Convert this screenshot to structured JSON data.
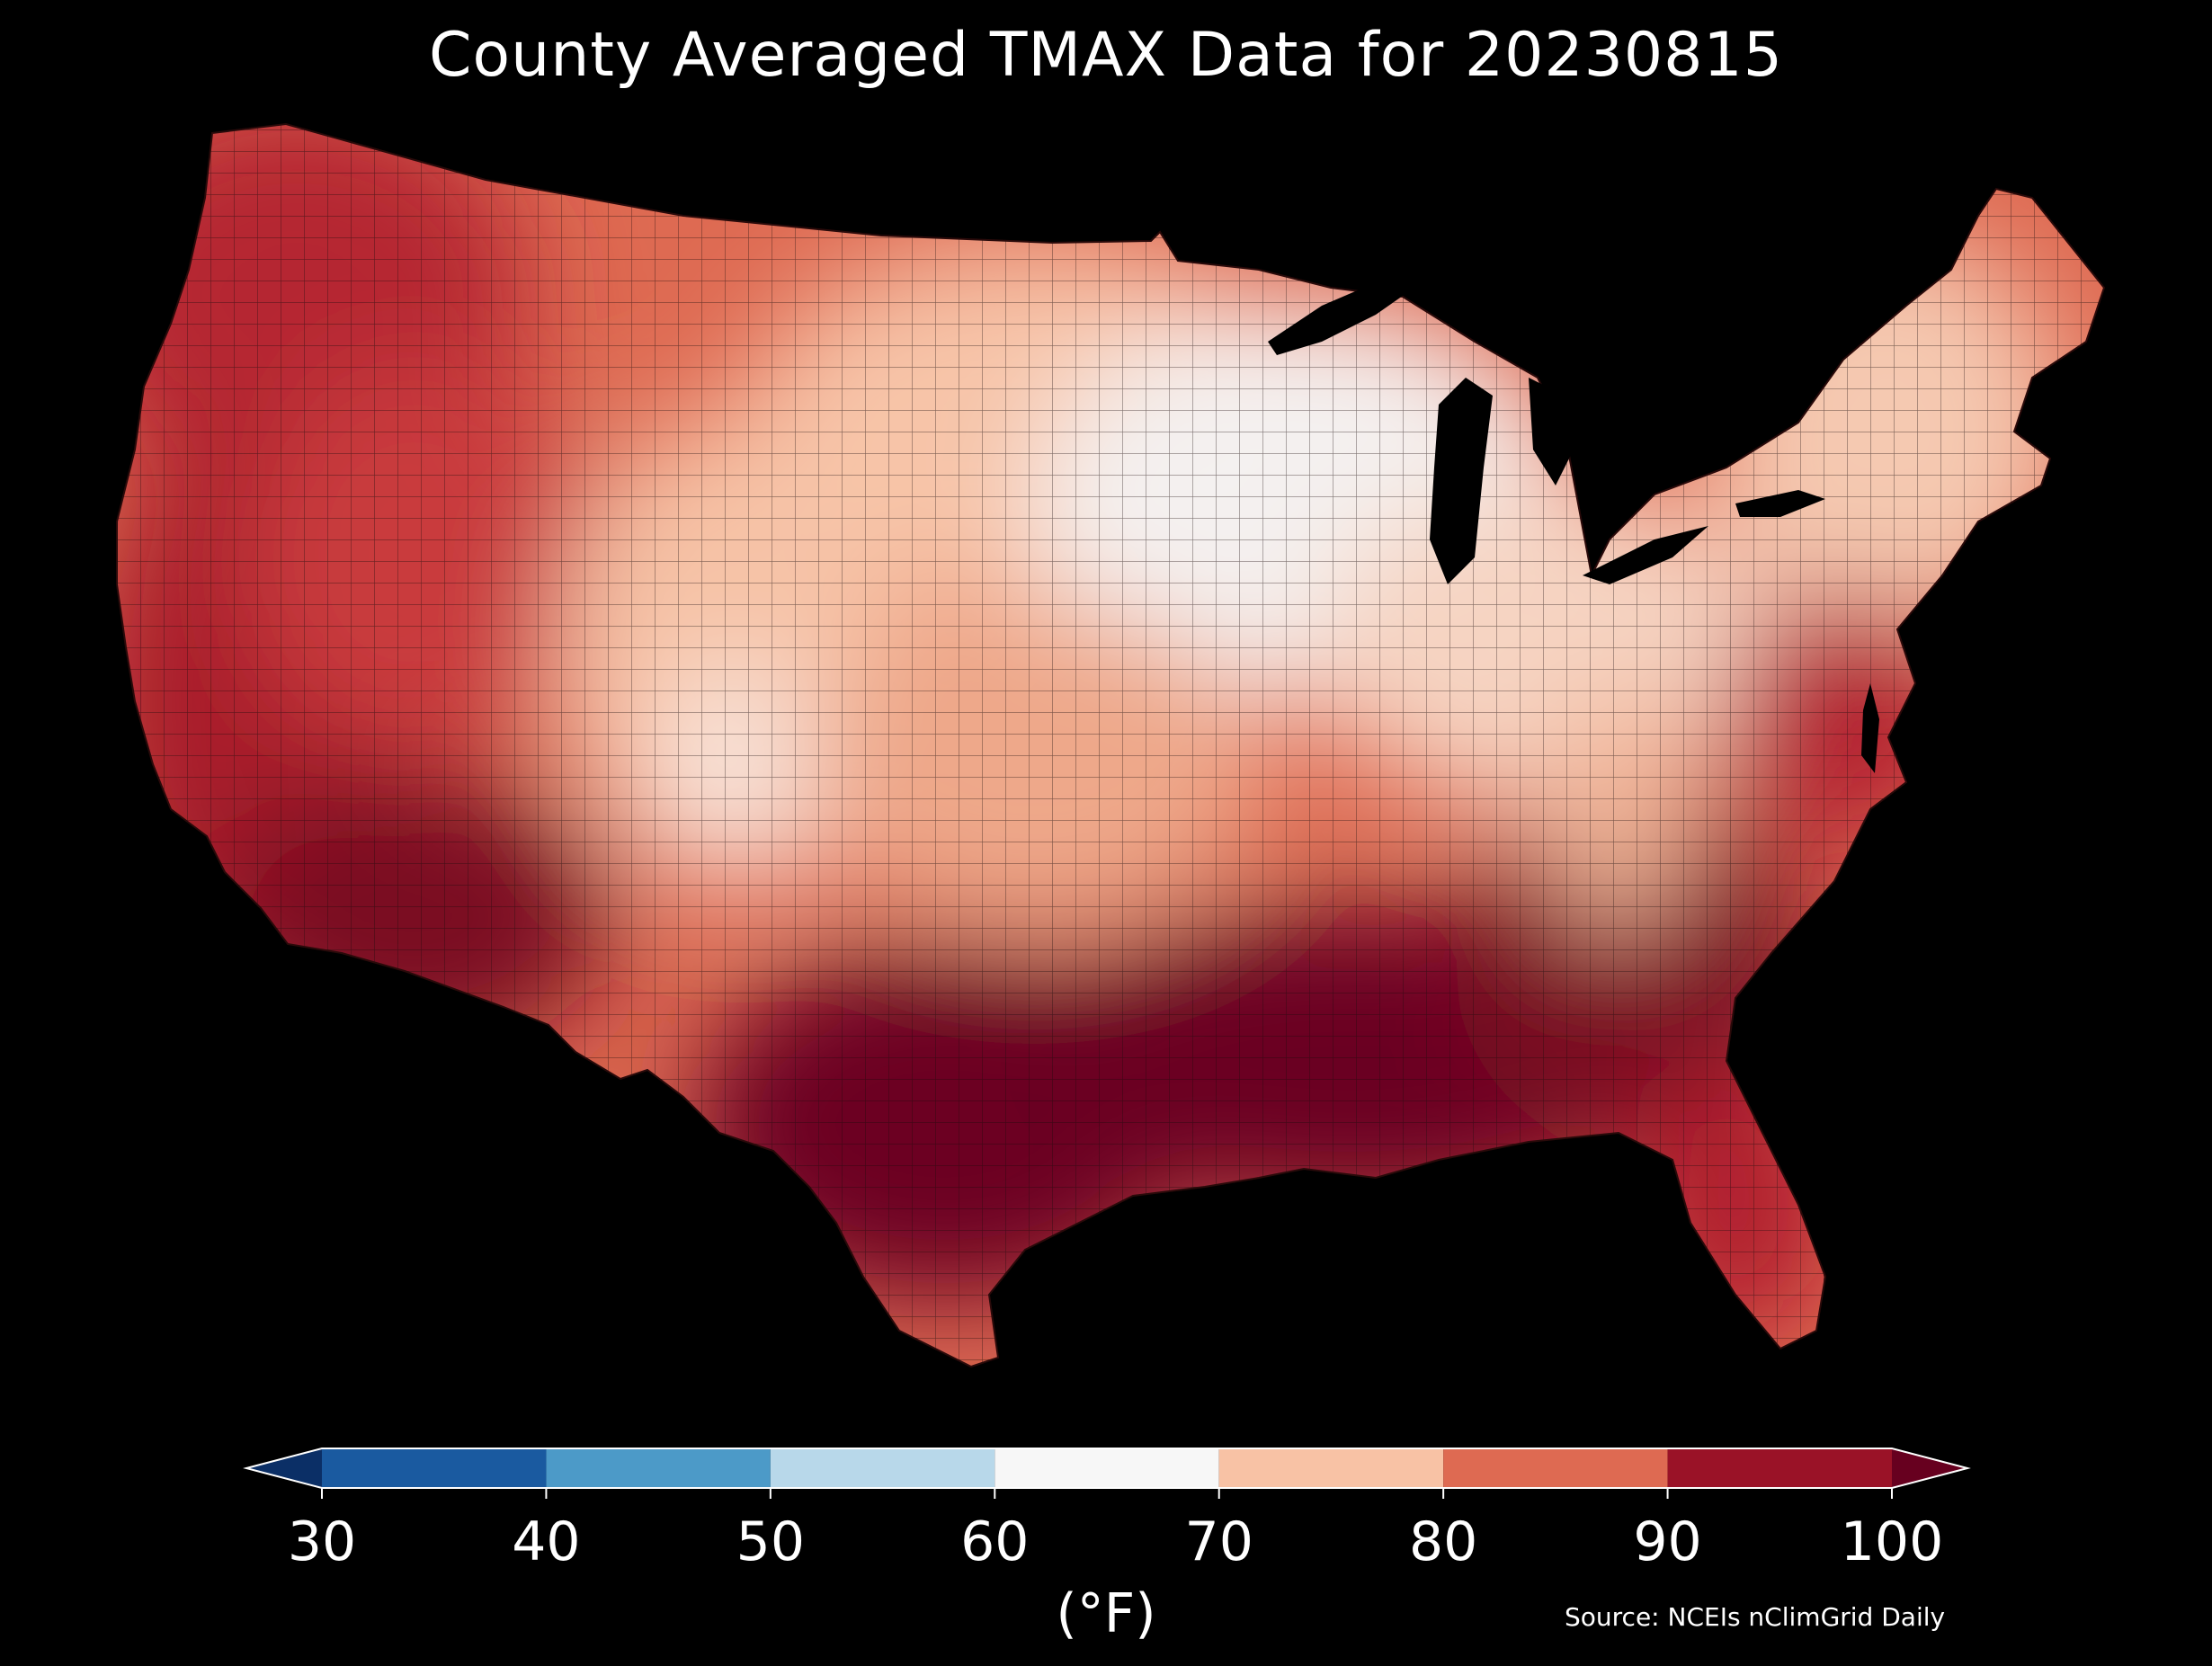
{
  "title": "County Averaged TMAX Data for 20230815",
  "source": "Source: NCEIs nClimGrid Daily",
  "colorbar": {
    "units": "(°F)",
    "ticks": [
      "30",
      "40",
      "50",
      "60",
      "70",
      "80",
      "90",
      "100"
    ],
    "bins": [
      {
        "range": [
          30,
          40
        ],
        "color": "#1a5aa0"
      },
      {
        "range": [
          40,
          50
        ],
        "color": "#4c9ac8"
      },
      {
        "range": [
          50,
          60
        ],
        "color": "#b8d8ea"
      },
      {
        "range": [
          60,
          70
        ],
        "color": "#f7f7f7"
      },
      {
        "range": [
          70,
          80
        ],
        "color": "#f8c2a5"
      },
      {
        "range": [
          80,
          90
        ],
        "color": "#de6a52"
      },
      {
        "range": [
          90,
          100
        ],
        "color": "#9a1227"
      }
    ],
    "under_color": "#0b2f66",
    "over_color": "#67001f"
  },
  "map": {
    "region": "Contiguous United States",
    "variable": "TMAX",
    "date": "20230815",
    "regional_fill": [
      {
        "region": "Pacific Northwest",
        "value_range": [
          90,
          100
        ]
      },
      {
        "region": "California and Desert Southwest",
        "value_range": [
          90,
          105
        ]
      },
      {
        "region": "Great Basin",
        "value_range": [
          80,
          90
        ]
      },
      {
        "region": "Northern Rockies",
        "value_range": [
          80,
          90
        ]
      },
      {
        "region": "Colorado Rockies",
        "value_range": [
          60,
          75
        ]
      },
      {
        "region": "Northern Plains",
        "value_range": [
          70,
          80
        ]
      },
      {
        "region": "Upper Midwest",
        "value_range": [
          60,
          70
        ]
      },
      {
        "region": "Ohio Valley",
        "value_range": [
          70,
          80
        ]
      },
      {
        "region": "Appalachians",
        "value_range": [
          70,
          80
        ]
      },
      {
        "region": "New England",
        "value_range": [
          70,
          80
        ]
      },
      {
        "region": "Mid-Atlantic",
        "value_range": [
          80,
          90
        ]
      },
      {
        "region": "Southern Plains",
        "value_range": [
          95,
          105
        ]
      },
      {
        "region": "Gulf Coast and Southeast",
        "value_range": [
          95,
          105
        ]
      },
      {
        "region": "Florida",
        "value_range": [
          90,
          100
        ]
      }
    ]
  }
}
